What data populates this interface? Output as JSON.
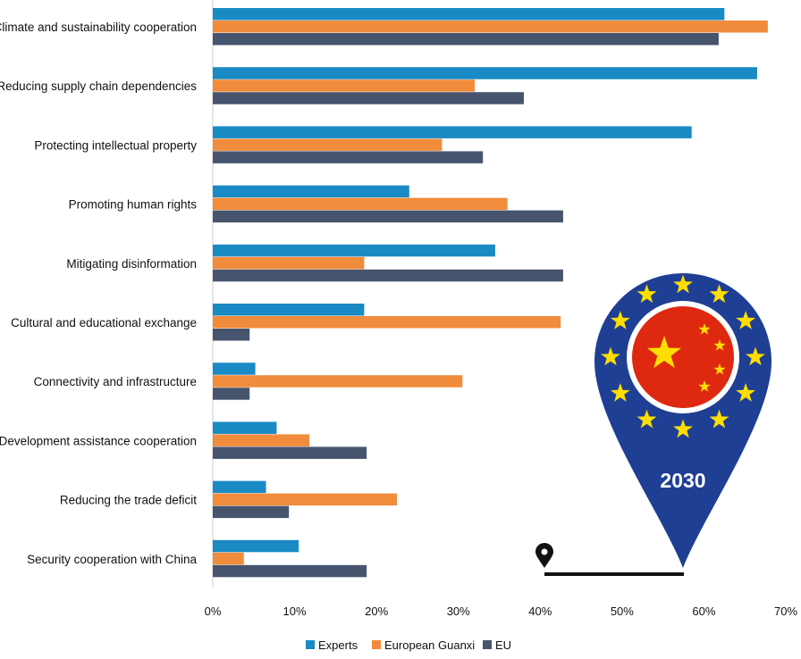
{
  "chart_data": {
    "type": "bar",
    "orientation": "horizontal",
    "categories": [
      "Climate and sustainability cooperation",
      "Reducing supply chain dependencies",
      "Protecting intellectual property",
      "Promoting human rights",
      "Mitigating disinformation",
      "Cultural and educational exchange",
      "Connectivity and infrastructure",
      "Development assistance cooperation",
      "Reducing the trade deficit",
      "Security cooperation with China"
    ],
    "series": [
      {
        "name": "Experts",
        "color": "#1a8ac4",
        "values": [
          62.5,
          66.5,
          58.5,
          24,
          34.5,
          18.5,
          5.2,
          7.8,
          6.5,
          10.5
        ]
      },
      {
        "name": "European Guanxi",
        "color": "#f08c3c",
        "values": [
          67.8,
          32,
          28,
          36,
          18.5,
          42.5,
          30.5,
          11.8,
          22.5,
          3.8
        ]
      },
      {
        "name": "EU",
        "color": "#46546e",
        "values": [
          61.8,
          38,
          33,
          42.8,
          42.8,
          4.5,
          4.5,
          18.8,
          9.3,
          18.8
        ]
      }
    ],
    "xlim": [
      0,
      70
    ],
    "xticks": [
      "0%",
      "10%",
      "20%",
      "30%",
      "40%",
      "50%",
      "60%",
      "70%"
    ],
    "title": "",
    "xlabel": "",
    "ylabel": "",
    "legend_position": "bottom-center"
  },
  "badge": {
    "year": "2030",
    "colors": {
      "pin": "#1f3f94",
      "ring": "#ffffff",
      "flag": "#de2910",
      "star": "#ffde00",
      "line": "#111111"
    }
  }
}
